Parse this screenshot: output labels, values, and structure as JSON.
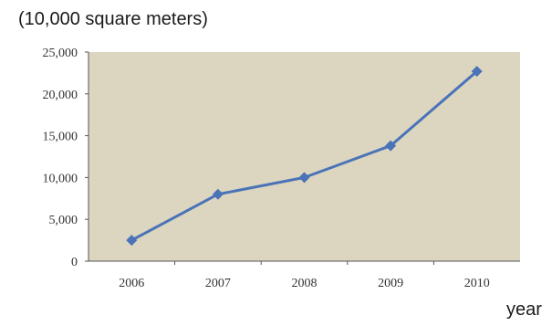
{
  "chart_data": {
    "type": "line",
    "ylabel": "(10,000 square meters)",
    "xlabel": "year",
    "categories": [
      "2006",
      "2007",
      "2008",
      "2009",
      "2010"
    ],
    "series": [
      {
        "values": [
          2500,
          8000,
          10000,
          13800,
          22700
        ]
      }
    ],
    "ylim": [
      0,
      25000
    ],
    "yticks": [
      "0",
      "5,000",
      "10,000",
      "15,000",
      "20,000",
      "25,000"
    ],
    "grid": false,
    "colors": {
      "plot_background": "#dcd6c0",
      "line": "#4a73b8",
      "marker": "#4a73b8"
    }
  }
}
